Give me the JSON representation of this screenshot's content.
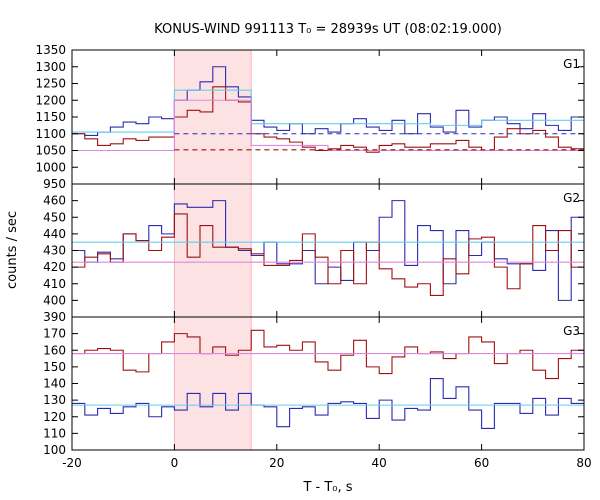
{
  "chart_data": {
    "type": "line",
    "title": "KONUS-WIND 991113 T₀ = 28939s UT (08:02:19.000)",
    "xlabel": "T - T₀, s",
    "ylabel": "counts / sec",
    "xlim": [
      -20,
      80
    ],
    "xticks": [
      -20,
      0,
      20,
      40,
      60,
      80
    ],
    "highlight_interval": [
      0,
      15
    ],
    "colors": {
      "blue": "#2b2bb0",
      "red": "#a01010",
      "cyan": "#66ccee",
      "pink": "#dd88dd",
      "shade": "#fde2e4"
    },
    "panels": [
      {
        "name": "G1",
        "ylim": [
          950,
          1350
        ],
        "yticks": [
          950,
          1000,
          1050,
          1100,
          1150,
          1200,
          1250,
          1300,
          1350
        ],
        "series": [
          {
            "color": "blue",
            "x": [
              -20,
              -17.5,
              -15,
              -12.5,
              -10,
              -7.5,
              -5,
              -2.5,
              0,
              2.5,
              5,
              7.5,
              10,
              12.5,
              15,
              17.5,
              20,
              22.5,
              25,
              27.5,
              30,
              32.5,
              35,
              37.5,
              40,
              42.5,
              45,
              47.5,
              50,
              52.5,
              55,
              57.5,
              60,
              62.5,
              65,
              67.5,
              70,
              72.5,
              75,
              77.5,
              80
            ],
            "y": [
              1100,
              1095,
              1105,
              1120,
              1135,
              1130,
              1150,
              1145,
              1200,
              1230,
              1255,
              1300,
              1240,
              1210,
              1140,
              1120,
              1110,
              1130,
              1100,
              1115,
              1105,
              1130,
              1145,
              1120,
              1110,
              1140,
              1100,
              1160,
              1120,
              1105,
              1170,
              1120,
              1140,
              1150,
              1130,
              1115,
              1160,
              1125,
              1110,
              1150,
              1120
            ]
          },
          {
            "color": "red",
            "x": [
              -20,
              -17.5,
              -15,
              -12.5,
              -10,
              -7.5,
              -5,
              -2.5,
              0,
              2.5,
              5,
              7.5,
              10,
              12.5,
              15,
              17.5,
              20,
              22.5,
              25,
              27.5,
              30,
              32.5,
              35,
              37.5,
              40,
              42.5,
              45,
              47.5,
              50,
              52.5,
              55,
              57.5,
              60,
              62.5,
              65,
              67.5,
              70,
              72.5,
              75,
              77.5,
              80
            ],
            "y": [
              1100,
              1085,
              1065,
              1070,
              1085,
              1080,
              1090,
              1090,
              1150,
              1170,
              1165,
              1240,
              1200,
              1195,
              1100,
              1090,
              1085,
              1075,
              1060,
              1050,
              1055,
              1065,
              1060,
              1045,
              1065,
              1070,
              1060,
              1060,
              1070,
              1070,
              1080,
              1060,
              1050,
              1090,
              1115,
              1100,
              1110,
              1090,
              1060,
              1055,
              1050
            ]
          },
          {
            "color": "cyan",
            "x": [
              -20,
              -5,
              0,
              15,
              50,
              60,
              80
            ],
            "y": [
              1105,
              1105,
              1230,
              1130,
              1125,
              1140,
              1140
            ]
          },
          {
            "color": "pink",
            "x": [
              -20,
              0,
              15,
              30,
              80
            ],
            "y": [
              1050,
              1200,
              1065,
              1050,
              1110
            ]
          },
          {
            "color": "blue",
            "dashed": true,
            "x": [
              0,
              80
            ],
            "y": [
              1100,
              1100
            ]
          },
          {
            "color": "red",
            "dashed": true,
            "x": [
              0,
              80
            ],
            "y": [
              1052,
              1052
            ]
          }
        ]
      },
      {
        "name": "G2",
        "ylim": [
          390,
          470
        ],
        "yticks": [
          390,
          400,
          410,
          420,
          430,
          440,
          450,
          460
        ],
        "series": [
          {
            "color": "blue",
            "x": [
              -20,
              -17.5,
              -15,
              -12.5,
              -10,
              -7.5,
              -5,
              -2.5,
              0,
              2.5,
              5,
              7.5,
              10,
              12.5,
              15,
              17.5,
              20,
              22.5,
              25,
              27.5,
              30,
              32.5,
              35,
              37.5,
              40,
              42.5,
              45,
              47.5,
              50,
              52.5,
              55,
              57.5,
              60,
              62.5,
              65,
              67.5,
              70,
              72.5,
              75,
              77.5,
              80
            ],
            "y": [
              430,
              423,
              429,
              425,
              440,
              436,
              445,
              440,
              458,
              456,
              456,
              460,
              432,
              430,
              427,
              435,
              422,
              422,
              430,
              410,
              420,
              412,
              435,
              430,
              450,
              460,
              421,
              445,
              442,
              410,
              442,
              427,
              435,
              425,
              422,
              422,
              418,
              442,
              400,
              450,
              432
            ]
          },
          {
            "color": "red",
            "x": [
              -20,
              -17.5,
              -15,
              -12.5,
              -10,
              -7.5,
              -5,
              -2.5,
              0,
              2.5,
              5,
              7.5,
              10,
              12.5,
              15,
              17.5,
              20,
              22.5,
              25,
              27.5,
              30,
              32.5,
              35,
              37.5,
              40,
              42.5,
              45,
              47.5,
              50,
              52.5,
              55,
              57.5,
              60,
              62.5,
              65,
              67.5,
              70,
              72.5,
              75,
              77.5,
              80
            ],
            "y": [
              420,
              426,
              428,
              423,
              440,
              436,
              430,
              438,
              452,
              426,
              445,
              432,
              432,
              431,
              428,
              421,
              421,
              424,
              440,
              426,
              410,
              430,
              410,
              435,
              419,
              413,
              408,
              410,
              403,
              425,
              416,
              437,
              438,
              420,
              407,
              422,
              445,
              430,
              442,
              420,
              423
            ]
          },
          {
            "color": "cyan",
            "x": [
              -20,
              80
            ],
            "y": [
              435,
              435
            ]
          },
          {
            "color": "pink",
            "x": [
              -20,
              80
            ],
            "y": [
              423,
              423
            ]
          }
        ]
      },
      {
        "name": "G3",
        "ylim": [
          100,
          180
        ],
        "yticks": [
          100,
          110,
          120,
          130,
          140,
          150,
          160,
          170
        ],
        "series": [
          {
            "color": "red",
            "x": [
              -20,
              -17.5,
              -15,
              -12.5,
              -10,
              -7.5,
              -5,
              -2.5,
              0,
              2.5,
              5,
              7.5,
              10,
              12.5,
              15,
              17.5,
              20,
              22.5,
              25,
              27.5,
              30,
              32.5,
              35,
              37.5,
              40,
              42.5,
              45,
              47.5,
              50,
              52.5,
              55,
              57.5,
              60,
              62.5,
              65,
              67.5,
              70,
              72.5,
              75,
              77.5,
              80
            ],
            "y": [
              158,
              160,
              161,
              160,
              148,
              147,
              158,
              165,
              170,
              168,
              158,
              162,
              157,
              160,
              172,
              162,
              163,
              160,
              165,
              153,
              148,
              157,
              166,
              150,
              146,
              156,
              162,
              158,
              159,
              155,
              158,
              168,
              165,
              152,
              158,
              160,
              148,
              143,
              155,
              160,
              170
            ]
          },
          {
            "color": "blue",
            "x": [
              -20,
              -17.5,
              -15,
              -12.5,
              -10,
              -7.5,
              -5,
              -2.5,
              0,
              2.5,
              5,
              7.5,
              10,
              12.5,
              15,
              17.5,
              20,
              22.5,
              25,
              27.5,
              30,
              32.5,
              35,
              37.5,
              40,
              42.5,
              45,
              47.5,
              50,
              52.5,
              55,
              57.5,
              60,
              62.5,
              65,
              67.5,
              70,
              72.5,
              75,
              77.5,
              80
            ],
            "y": [
              128,
              121,
              125,
              122,
              126,
              128,
              120,
              126,
              124,
              134,
              126,
              134,
              124,
              134,
              127,
              126,
              114,
              125,
              126,
              121,
              128,
              129,
              128,
              119,
              130,
              118,
              125,
              124,
              143,
              131,
              138,
              124,
              113,
              128,
              128,
              122,
              131,
              121,
              131,
              128,
              129
            ]
          },
          {
            "color": "cyan",
            "x": [
              -20,
              80
            ],
            "y": [
              127,
              127
            ]
          },
          {
            "color": "pink",
            "x": [
              -20,
              80
            ],
            "y": [
              158,
              158
            ]
          }
        ]
      }
    ]
  }
}
